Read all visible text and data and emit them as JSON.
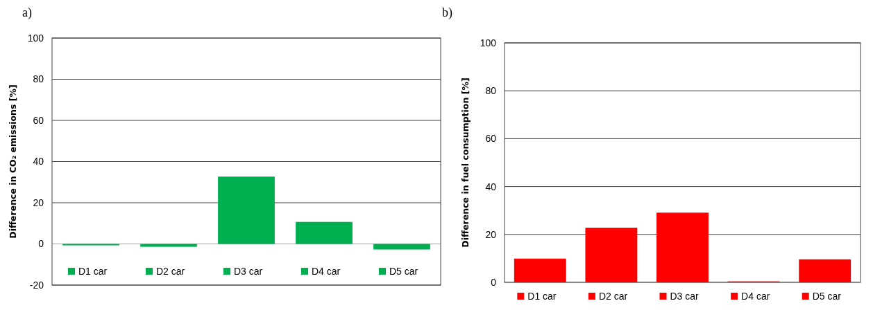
{
  "chart_data": [
    {
      "type": "bar",
      "title": "a)",
      "ylabel": "Difference in CO₂ emissions [%]",
      "categories": [
        null
      ],
      "ylim": [
        -20,
        100
      ],
      "yticks": [
        -20,
        0,
        20,
        40,
        60,
        80,
        100
      ],
      "grid": "y",
      "legend": "bottom",
      "series": [
        {
          "name": "D1 car",
          "color": "#00b050",
          "values": [
            -0.7
          ]
        },
        {
          "name": "D2 car",
          "color": "#00b050",
          "values": [
            -1.4
          ]
        },
        {
          "name": "D3 car",
          "color": "#00b050",
          "values": [
            32.7
          ]
        },
        {
          "name": "D4 car",
          "color": "#00b050",
          "values": [
            10.7
          ]
        },
        {
          "name": "D5 car",
          "color": "#00b050",
          "values": [
            -2.7
          ]
        }
      ]
    },
    {
      "type": "bar",
      "title": "b)",
      "ylabel": "Difference in fuel consumption [%]",
      "categories": [
        null
      ],
      "ylim": [
        0,
        100
      ],
      "yticks": [
        0,
        20,
        40,
        60,
        80,
        100
      ],
      "grid": "y",
      "legend": "bottom",
      "series": [
        {
          "name": "D1 car",
          "color": "#ff0000",
          "values": [
            9.9
          ]
        },
        {
          "name": "D2 car",
          "color": "#ff0000",
          "values": [
            22.8
          ]
        },
        {
          "name": "D3 car",
          "color": "#ff0000",
          "values": [
            29.1
          ]
        },
        {
          "name": "D4 car",
          "color": "#ff0000",
          "values": [
            0.4
          ]
        },
        {
          "name": "D5 car",
          "color": "#ff0000",
          "values": [
            9.6
          ]
        }
      ]
    }
  ]
}
